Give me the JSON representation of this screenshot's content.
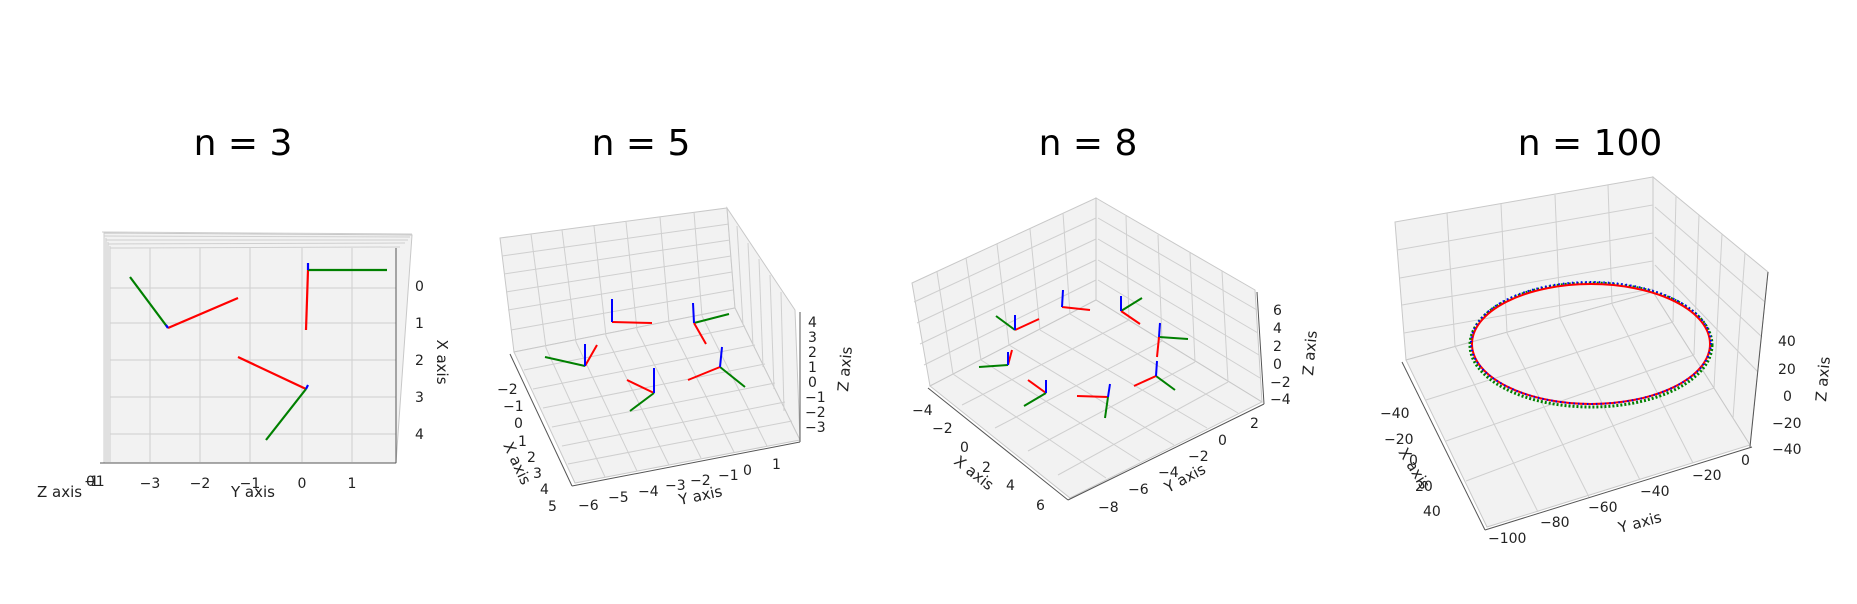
{
  "figure": {
    "panels": [
      {
        "title": "n = 3",
        "xlabel": "X axis",
        "ylabel": "Y axis",
        "zlabel": "Z axis",
        "x_ticks": [
          "0",
          "1",
          "2",
          "3",
          "4"
        ],
        "y_ticks": [
          "−3",
          "−2",
          "−1",
          "0",
          "1"
        ],
        "z_ticks": [
          "−1",
          "0",
          "1"
        ],
        "frames": [
          {
            "origin": [
              0,
              0
            ],
            "ticks": {
              "x": [
                0,
                0
              ],
              "y": [
                0,
                0
              ]
            }
          },
          {
            "origin": [
              1,
              -2.7
            ]
          },
          {
            "origin": [
              3,
              0
            ]
          }
        ]
      },
      {
        "title": "n = 5",
        "xlabel": "X axis",
        "ylabel": "Y axis",
        "zlabel": "Z axis",
        "x_ticks": [
          "−2",
          "−1",
          "0",
          "1",
          "2",
          "3",
          "4",
          "5"
        ],
        "y_ticks": [
          "−6",
          "−5",
          "−4",
          "−3",
          "−2",
          "−1",
          "0",
          "1"
        ],
        "z_ticks": [
          "4",
          "3",
          "2",
          "1",
          "0",
          "−1",
          "−2",
          "−3"
        ]
      },
      {
        "title": "n = 8",
        "xlabel": "X axis",
        "ylabel": "Y axis",
        "zlabel": "Z axis",
        "x_ticks": [
          "−4",
          "−2",
          "0",
          "2",
          "4",
          "6"
        ],
        "y_ticks": [
          "−8",
          "−6",
          "−4",
          "−2",
          "0",
          "2"
        ],
        "z_ticks": [
          "6",
          "4",
          "2",
          "0",
          "−2",
          "−4"
        ]
      },
      {
        "title": "n = 100",
        "xlabel": "X axis",
        "ylabel": "Y axis",
        "zlabel": "Z axis",
        "x_ticks": [
          "−40",
          "−20",
          "0",
          "20",
          "40"
        ],
        "y_ticks": [
          "−100",
          "−80",
          "−60",
          "−40",
          "−20",
          "0"
        ],
        "z_ticks": [
          "40",
          "20",
          "0",
          "−20",
          "−40"
        ]
      }
    ]
  },
  "chart_data": [
    {
      "type": "scatter",
      "title": "n = 3",
      "xlabel": "X axis",
      "ylabel": "Y axis",
      "zlabel": "Z axis",
      "series": [
        {
          "name": "",
          "color": "#ff0000"
        },
        {
          "name": "",
          "color": "#008000"
        },
        {
          "name": "",
          "color": "#0000ff"
        }
      ],
      "frame_count": 3
    },
    {
      "type": "scatter",
      "title": "n = 5",
      "xlabel": "X axis",
      "ylabel": "Y axis",
      "zlabel": "Z axis",
      "xlim": [
        -2,
        5
      ],
      "ylim": [
        -6,
        1
      ],
      "zlim": [
        -3,
        4
      ],
      "frame_count": 5
    },
    {
      "type": "scatter",
      "title": "n = 8",
      "xlabel": "X axis",
      "ylabel": "Y axis",
      "zlabel": "Z axis",
      "xlim": [
        -4,
        6
      ],
      "ylim": [
        -8,
        2
      ],
      "zlim": [
        -4,
        6
      ],
      "frame_count": 8
    },
    {
      "type": "scatter",
      "title": "n = 100",
      "xlabel": "X axis",
      "ylabel": "Y axis",
      "zlabel": "Z axis",
      "xlim": [
        -40,
        40
      ],
      "ylim": [
        -100,
        0
      ],
      "zlim": [
        -40,
        40
      ],
      "frame_count": 100
    }
  ],
  "colors": {
    "x_axis": "#ff0000",
    "y_axis": "#008000",
    "z_axis": "#0000ff",
    "pane": "#f2f2f2",
    "grid": "#cfcfcf"
  }
}
